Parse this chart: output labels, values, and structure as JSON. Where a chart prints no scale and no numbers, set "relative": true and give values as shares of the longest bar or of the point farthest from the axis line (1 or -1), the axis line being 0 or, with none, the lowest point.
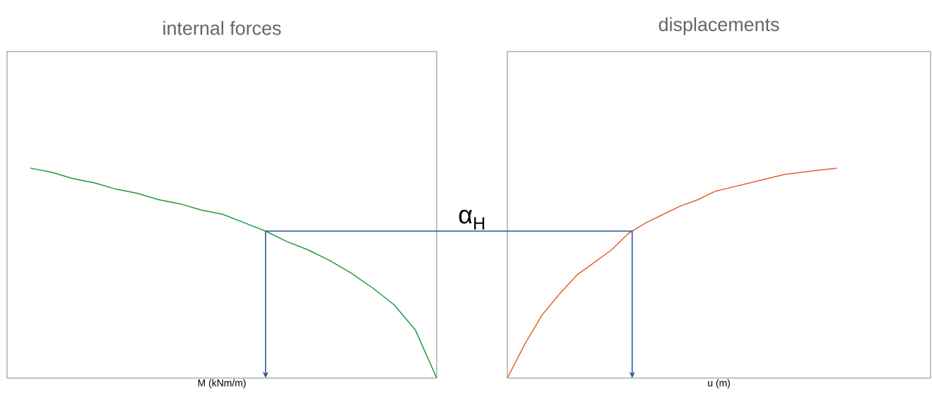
{
  "chart_data": [
    {
      "type": "line",
      "title": "internal forces",
      "xlabel": "M (kNm/m)",
      "relative": true,
      "categories": [
        null,
        null,
        null,
        null,
        null,
        null,
        null,
        null,
        null,
        null,
        null,
        null,
        null,
        null,
        null,
        null,
        null,
        null,
        null,
        null
      ],
      "series": [
        {
          "color": "#1e9a3a",
          "values": [
            1,
            0.98,
            0.95,
            0.93,
            0.9,
            0.88,
            0.85,
            0.83,
            0.8,
            0.78,
            0.74,
            0.7,
            0.65,
            0.61,
            0.56,
            0.5,
            0.43,
            0.35,
            0.23,
            0
          ]
        }
      ],
      "ref_lines": [
        {
          "axis": "y",
          "value": 0.7,
          "label": "α$_{H}$",
          "color": "#2f4f9f"
        }
      ]
    },
    {
      "type": "line",
      "title": "displacements",
      "xlabel": "u (m)",
      "relative": true,
      "categories": [
        null,
        null,
        null,
        null,
        null,
        null,
        null,
        null,
        null,
        null,
        null,
        null,
        null,
        null,
        null,
        null,
        null,
        null,
        null,
        null
      ],
      "series": [
        {
          "color": "#e0612b",
          "values": [
            0,
            0.16,
            0.3,
            0.4,
            0.49,
            0.55,
            0.61,
            0.69,
            0.74,
            0.78,
            0.82,
            0.85,
            0.89,
            0.91,
            0.93,
            0.95,
            0.97,
            0.98,
            0.99,
            1
          ]
        }
      ],
      "ref_lines": [
        {
          "axis": "y",
          "value": 0.7,
          "color": "#2f4f9f"
        }
      ]
    }
  ]
}
